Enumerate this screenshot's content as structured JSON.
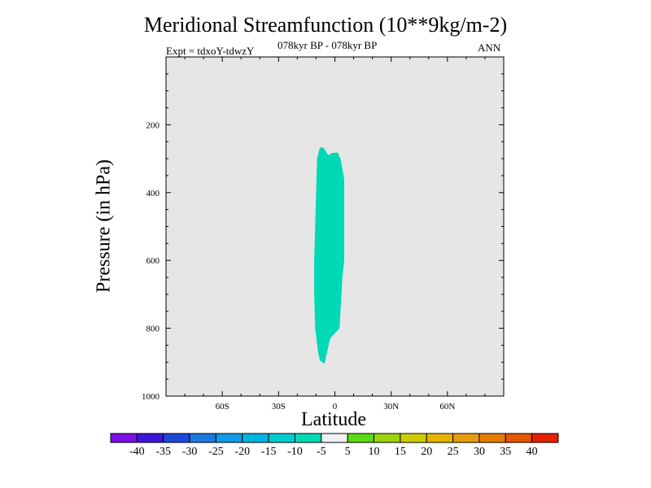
{
  "title": "Meridional Streamfunction (10**9kg/m-2)",
  "left_subtitle": "Expt = tdxoY-tdwzY",
  "center_subtitle": "078kyr BP - 078kyr BP",
  "right_subtitle": "ANN",
  "chart_data": {
    "type": "heatmap",
    "title": "Meridional Streamfunction (10**9kg/m-2)",
    "xlabel": "Latitude",
    "ylabel": "Pressure (in hPa)",
    "xlim": [
      -90,
      90
    ],
    "ylim": [
      1000,
      0
    ],
    "y_reversed": true,
    "plot_background": "#e6e6e6",
    "x_ticks": [
      {
        "value": -60,
        "label": "60S"
      },
      {
        "value": -30,
        "label": "30S"
      },
      {
        "value": 0,
        "label": "0"
      },
      {
        "value": 30,
        "label": "30N"
      },
      {
        "value": 60,
        "label": "60N"
      }
    ],
    "y_ticks": [
      {
        "value": 200,
        "label": "200"
      },
      {
        "value": 400,
        "label": "400"
      },
      {
        "value": 600,
        "label": "600"
      },
      {
        "value": 800,
        "label": "800"
      },
      {
        "value": 1000,
        "label": "1000"
      }
    ],
    "filled_regions": [
      {
        "level_range": [
          -10,
          -5
        ],
        "color": "#00d9b5",
        "outline": [
          [
            -8.0,
            267
          ],
          [
            -6.0,
            268
          ],
          [
            -3.5,
            290
          ],
          [
            -1.5,
            283
          ],
          [
            1.5,
            282
          ],
          [
            3.0,
            300
          ],
          [
            4.0,
            330
          ],
          [
            5.0,
            360
          ],
          [
            5.0,
            400
          ],
          [
            5.0,
            500
          ],
          [
            5.0,
            600
          ],
          [
            4.0,
            650
          ],
          [
            3.5,
            700
          ],
          [
            2.5,
            800
          ],
          [
            0.0,
            815
          ],
          [
            -2.5,
            830
          ],
          [
            -4.5,
            880
          ],
          [
            -5.5,
            905
          ],
          [
            -8.0,
            895
          ],
          [
            -9.0,
            870
          ],
          [
            -10.5,
            800
          ],
          [
            -11.0,
            700
          ],
          [
            -11.0,
            600
          ],
          [
            -10.5,
            500
          ],
          [
            -10.0,
            400
          ],
          [
            -9.5,
            300
          ],
          [
            -8.0,
            267
          ]
        ]
      }
    ],
    "colorbar": {
      "labels": [
        "-40",
        "-35",
        "-30",
        "-25",
        "-20",
        "-15",
        "-10",
        "-5",
        "5",
        "10",
        "15",
        "20",
        "25",
        "30",
        "35",
        "40"
      ],
      "colors": [
        "#7c0ee6",
        "#3d15d9",
        "#1f48d9",
        "#1a7ae0",
        "#109be6",
        "#00b5e0",
        "#00cdd0",
        "#00d9b5",
        "#f0f0f0",
        "#5dd916",
        "#9cd30e",
        "#cdcd00",
        "#e6b400",
        "#e69c10",
        "#e67c00",
        "#e65500",
        "#e62000"
      ]
    }
  }
}
